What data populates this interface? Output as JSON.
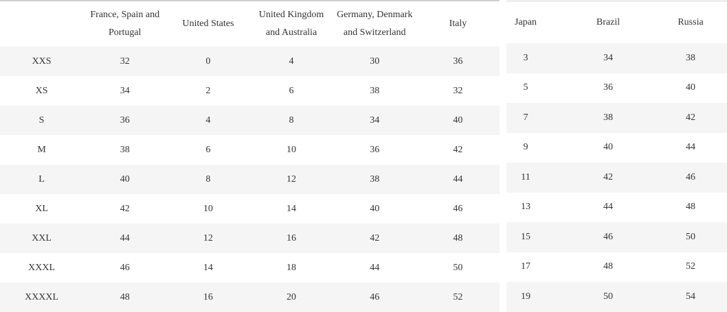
{
  "chart_data": [
    {
      "type": "table",
      "title": "Clothing size conversion chart (left section)",
      "columns": [
        "",
        "France, Spain and\nPortugal",
        "United States",
        "United Kingdom\nand Australia",
        "Germany, Denmark\nand Switzerland",
        "Italy"
      ],
      "rows": [
        [
          "XXS",
          "32",
          "0",
          "4",
          "30",
          "36"
        ],
        [
          "XS",
          "34",
          "2",
          "6",
          "38",
          "32"
        ],
        [
          "S",
          "36",
          "4",
          "8",
          "34",
          "40"
        ],
        [
          "M",
          "38",
          "6",
          "10",
          "36",
          "42"
        ],
        [
          "L",
          "40",
          "8",
          "12",
          "38",
          "44"
        ],
        [
          "XL",
          "42",
          "10",
          "14",
          "40",
          "46"
        ],
        [
          "XXL",
          "44",
          "12",
          "16",
          "42",
          "48"
        ],
        [
          "XXXL",
          "46",
          "14",
          "18",
          "44",
          "50"
        ],
        [
          "XXXXL",
          "48",
          "16",
          "20",
          "46",
          "52"
        ]
      ],
      "layout": {
        "grid": false,
        "row_striping": true,
        "first_stripe": "odd"
      }
    },
    {
      "type": "table",
      "title": "Clothing size conversion chart (right section)",
      "columns": [
        "Japan",
        "Brazil",
        "Russia"
      ],
      "rows": [
        [
          "3",
          "34",
          "38"
        ],
        [
          "5",
          "36",
          "40"
        ],
        [
          "7",
          "38",
          "42"
        ],
        [
          "9",
          "40",
          "44"
        ],
        [
          "11",
          "42",
          "46"
        ],
        [
          "13",
          "44",
          "48"
        ],
        [
          "15",
          "46",
          "50"
        ],
        [
          "17",
          "48",
          "52"
        ],
        [
          "19",
          "50",
          "54"
        ]
      ],
      "layout": {
        "grid": false,
        "row_striping": true,
        "first_stripe": "odd"
      }
    }
  ],
  "colors": {
    "background": "#ffffff",
    "row_stripe": "#f5f5f5",
    "text": "#333333",
    "left_panel_top_border": "#cfcfcf",
    "right_panel_top_border": "#eeeeee"
  }
}
